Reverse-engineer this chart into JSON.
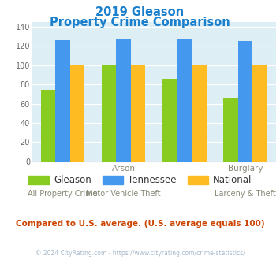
{
  "title_line1": "2019 Gleason",
  "title_line2": "Property Crime Comparison",
  "title_color": "#1a7fcc",
  "gleason": [
    74,
    100,
    86,
    66
  ],
  "tennessee": [
    126,
    128,
    128,
    125
  ],
  "national": [
    100,
    100,
    100,
    100
  ],
  "gleason_color": "#88cc22",
  "tennessee_color": "#4499ee",
  "national_color": "#ffbb22",
  "plot_bg": "#ddeef5",
  "ylim": [
    0,
    145
  ],
  "yticks": [
    0,
    20,
    40,
    60,
    80,
    100,
    120,
    140
  ],
  "top_xlabels": [
    "",
    "Arson",
    "",
    "Burglary"
  ],
  "bot_xlabels": [
    "All Property Crime",
    "Motor Vehicle Theft",
    "",
    "Larceny & Theft"
  ],
  "footnote": "Compared to U.S. average. (U.S. average equals 100)",
  "footnote_color": "#cc4400",
  "copyright": "© 2024 CityRating.com - https://www.cityrating.com/crime-statistics/",
  "copyright_color": "#aabbcc",
  "legend_labels": [
    "Gleason",
    "Tennessee",
    "National"
  ]
}
